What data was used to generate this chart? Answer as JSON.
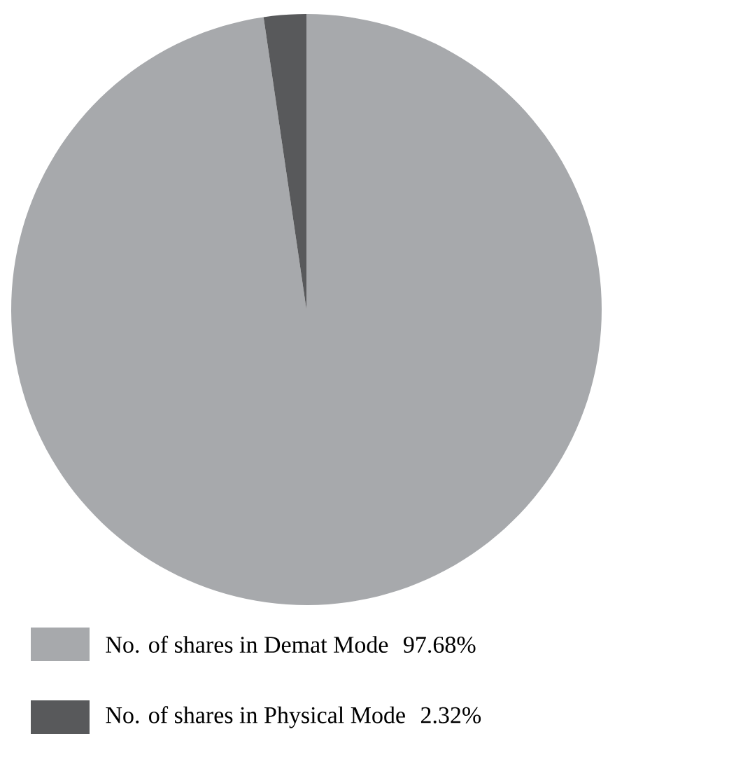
{
  "chart_data": {
    "type": "pie",
    "categories": [
      "No. of shares in Demat Mode",
      "No. of shares in Physical Mode"
    ],
    "values": [
      97.68,
      2.32
    ],
    "value_labels": [
      "97.68%",
      "2.32%"
    ],
    "colors": [
      "#a7a9ac",
      "#58595b"
    ],
    "legend": "bottom"
  }
}
